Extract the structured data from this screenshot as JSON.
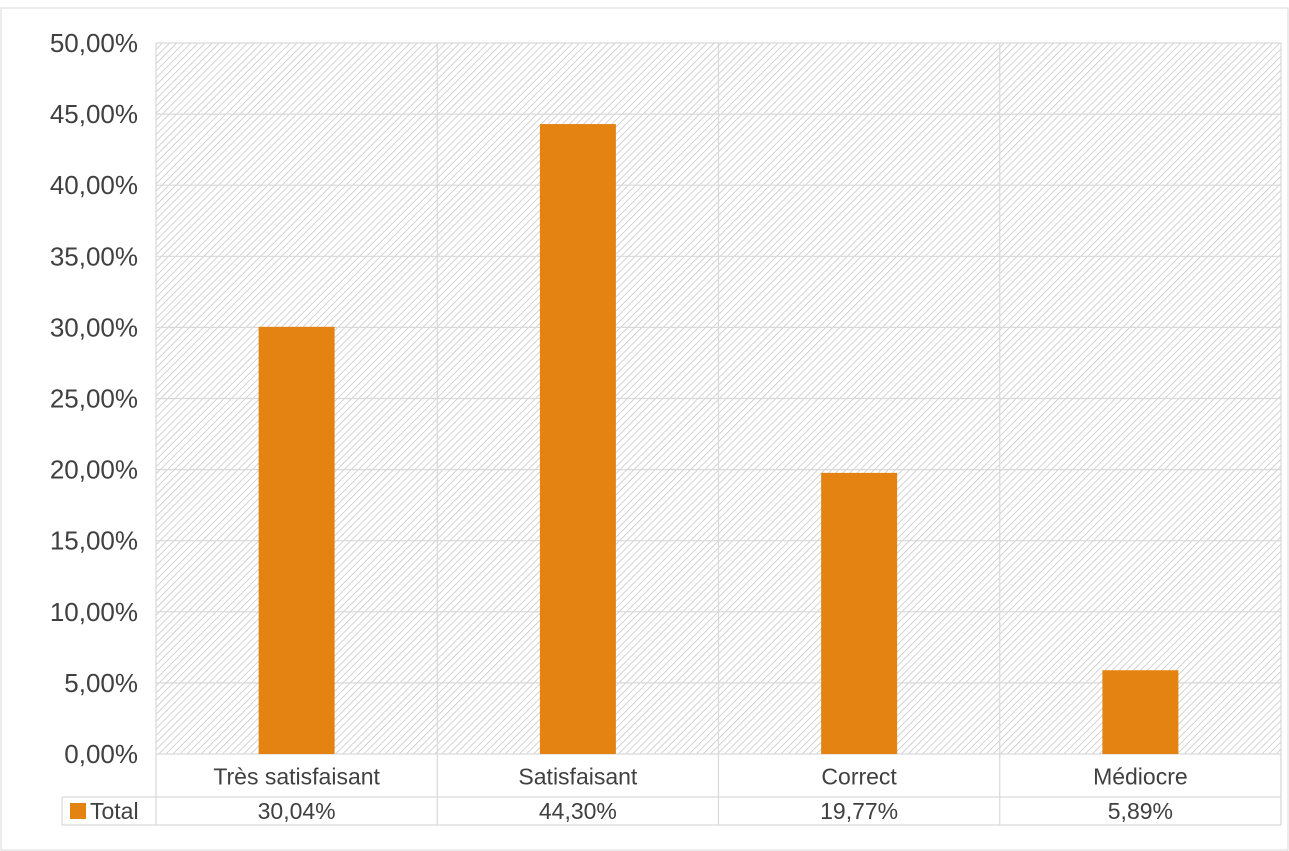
{
  "chart_data": {
    "type": "bar",
    "categories": [
      "Très satisfaisant",
      "Satisfaisant",
      "Correct",
      "Médiocre"
    ],
    "series": [
      {
        "name": "Total",
        "values": [
          30.04,
          44.3,
          19.77,
          5.89
        ],
        "labels": [
          "30,04%",
          "44,30%",
          "19,77%",
          "5,89%"
        ],
        "color": "#E48312"
      }
    ],
    "title": "",
    "xlabel": "",
    "ylabel": "",
    "ylim": [
      0,
      50
    ],
    "y_ticks": [
      0,
      5,
      10,
      15,
      20,
      25,
      30,
      35,
      40,
      45,
      50
    ],
    "y_tick_labels": [
      "0,00%",
      "5,00%",
      "10,00%",
      "15,00%",
      "20,00%",
      "25,00%",
      "30,00%",
      "35,00%",
      "40,00%",
      "45,00%",
      "50,00%"
    ],
    "grid": true,
    "plot_background": "hatched light gray",
    "legend_placement": "data table below chart",
    "data_table": true
  }
}
